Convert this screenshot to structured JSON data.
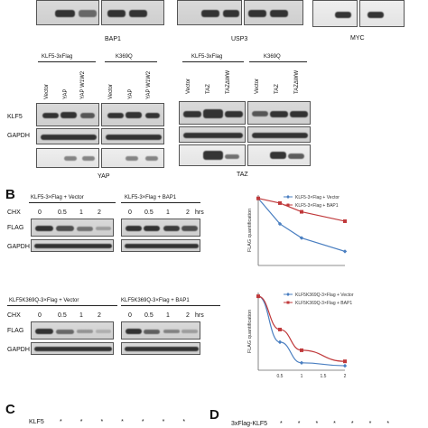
{
  "topRow": {
    "labels": [
      "BAP1",
      "USP3",
      "MYC"
    ]
  },
  "panelA": {
    "yapGroup": {
      "header1": "KLF5-3xFlag",
      "header2": "K369Q",
      "lanes1": [
        "Vector",
        "YAP",
        "YAP W1W2"
      ],
      "lanes2": [
        "Vector",
        "YAP",
        "YAP W1W2"
      ],
      "rows": [
        "KLF5",
        "GAPDH"
      ],
      "footer": "YAP"
    },
    "tazGroup": {
      "header1": "KLF5-3xFlag",
      "header2": "K369Q",
      "lanes1": [
        "Vector",
        "TAZ",
        "TAZΔWW"
      ],
      "lanes2": [
        "Vector",
        "TAZ",
        "TAZΔWW"
      ],
      "footer": "TAZ"
    }
  },
  "panelB": {
    "letter": "B",
    "blot1": {
      "header1": "KLF5-3×Flag + Vector",
      "header2": "KLF5-3×Flag + BAP1",
      "chx": "CHX",
      "times": [
        "0",
        "0.5",
        "1",
        "2"
      ],
      "unit": "hrs",
      "rows": [
        "FLAG",
        "GAPDH"
      ]
    },
    "blot2": {
      "header1": "KLF5K369Q-3×Flag + Vector",
      "header2": "KLF5K369Q-3×Flag + BAP1",
      "chx": "CHX",
      "times": [
        "0",
        "0.5",
        "1",
        "2"
      ],
      "unit": "hrs",
      "rows": [
        "FLAG",
        "GAPDH"
      ]
    }
  },
  "panelC": {
    "letter": "C",
    "rowLabel": "KLF5"
  },
  "panelD": {
    "letter": "D",
    "rowLabel": "3xFlag-KLF5"
  },
  "colors": {
    "blue": "#4a7fc1",
    "red": "#c0393b"
  },
  "chart_data": [
    {
      "type": "line",
      "ylabel": "FLAG quantification",
      "x": [
        0,
        0.5,
        1,
        2
      ],
      "xticks": [],
      "xlim": [
        0,
        2
      ],
      "ylim": [
        0,
        1.05
      ],
      "series": [
        {
          "name": "KLF5-3×Flag + Vector",
          "color": "#4a7fc1",
          "values": [
            1.0,
            0.62,
            0.41,
            0.21
          ]
        },
        {
          "name": "KLF5-3×Flag + BAP1",
          "color": "#c0393b",
          "values": [
            1.0,
            0.93,
            0.8,
            0.66
          ]
        }
      ],
      "legend": "top-right"
    },
    {
      "type": "line",
      "ylabel": "FLAG quantification",
      "x": [
        0,
        0.5,
        1,
        2
      ],
      "xticks": [
        "0.5",
        "1",
        "1.5",
        "2"
      ],
      "xlim": [
        0,
        2
      ],
      "ylim": [
        0,
        1.05
      ],
      "series": [
        {
          "name": "KLF5K369Q-3×Flag + Vector",
          "color": "#4a7fc1",
          "values": [
            1.0,
            0.38,
            0.1,
            0.06
          ]
        },
        {
          "name": "KLF5K369Q-3×Flag + BAP1",
          "color": "#c0393b",
          "values": [
            1.0,
            0.55,
            0.27,
            0.12
          ]
        }
      ],
      "legend": "top-right"
    }
  ]
}
